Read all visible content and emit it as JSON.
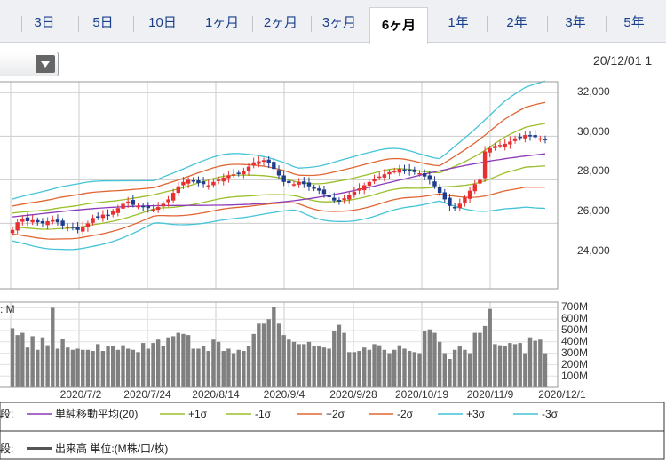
{
  "tabs": [
    {
      "label": "3日"
    },
    {
      "label": "5日"
    },
    {
      "label": "10日"
    },
    {
      "label": "1ヶ月"
    },
    {
      "label": "2ヶ月"
    },
    {
      "label": "3ヶ月"
    },
    {
      "label": "6ヶ月",
      "active": true
    },
    {
      "label": "1年"
    },
    {
      "label": "2年"
    },
    {
      "label": "3年"
    },
    {
      "label": "5年"
    }
  ],
  "header": {
    "datetime": "20/12/01 1"
  },
  "chart": {
    "price_ticks": [
      "32,000",
      "30,000",
      "28,000",
      "26,000",
      "24,000"
    ],
    "volume_unit_label": ": M",
    "volume_ticks": [
      "700M",
      "600M",
      "500M",
      "400M",
      "300M",
      "200M",
      "100M"
    ],
    "date_ticks": [
      "2020/7/2",
      "2020/7/24",
      "2020/8/14",
      "2020/9/4",
      "2020/9/28",
      "2020/10/19",
      "2020/11/9",
      "2020/12/1"
    ]
  },
  "legend": {
    "row1_prefix": "段:",
    "row2_prefix": "段:",
    "items": [
      {
        "label": "単純移動平均(20)",
        "color": "#8b3ab8"
      },
      {
        "label": "+1σ",
        "color": "#9bbf2a"
      },
      {
        "label": "-1σ",
        "color": "#9bbf2a"
      },
      {
        "label": "+2σ",
        "color": "#e06633"
      },
      {
        "label": "-2σ",
        "color": "#e06633"
      },
      {
        "label": "+3σ",
        "color": "#45c4d8"
      },
      {
        "label": "-3σ",
        "color": "#45c4d8"
      }
    ],
    "volume_label": "出来高 単位:(M株/口/枚)"
  },
  "colors": {
    "candle_up": "#e83030",
    "candle_down": "#1d3c8c",
    "volume_bar": "#808080",
    "grid": "#cccccc"
  },
  "chart_data": {
    "type": "candlestick",
    "price_range": [
      23000,
      32500
    ],
    "closes": [
      25700,
      26050,
      26200,
      26100,
      26150,
      26050,
      26000,
      26100,
      26150,
      26050,
      25900,
      25850,
      25800,
      25700,
      25850,
      26000,
      26250,
      26300,
      26400,
      26350,
      26550,
      26700,
      26900,
      27000,
      26850,
      26800,
      26750,
      26700,
      26650,
      26750,
      26900,
      27100,
      27400,
      27700,
      27900,
      28000,
      27950,
      27850,
      27800,
      27750,
      27900,
      28000,
      28100,
      28200,
      28250,
      28300,
      28400,
      28600,
      28800,
      28850,
      28900,
      28750,
      28500,
      28200,
      27900,
      27850,
      27800,
      27900,
      27800,
      27700,
      27600,
      27500,
      27350,
      27200,
      27050,
      27000,
      27150,
      27300,
      27450,
      27600,
      27750,
      27900,
      28050,
      28150,
      28250,
      28350,
      28400,
      28500,
      28450,
      28400,
      28350,
      28300,
      28150,
      28000,
      27700,
      27400,
      27100,
      26800,
      26700,
      26900,
      27200,
      27500,
      27800,
      28000,
      29300,
      29450,
      29550,
      29600,
      29650,
      29750,
      29900,
      29950,
      30050,
      30000,
      29950,
      29900,
      29850
    ],
    "sma20_left": 26300,
    "sma20_right": 29050,
    "volume_range": [
      0,
      750
    ],
    "volumes": [
      520,
      460,
      480,
      350,
      450,
      330,
      440,
      370,
      700,
      340,
      430,
      350,
      330,
      340,
      330,
      330,
      320,
      380,
      320,
      360,
      360,
      330,
      370,
      340,
      330,
      310,
      390,
      340,
      390,
      420,
      360,
      440,
      450,
      480,
      470,
      460,
      340,
      340,
      360,
      320,
      420,
      400,
      320,
      340,
      300,
      330,
      320,
      360,
      470,
      560,
      560,
      600,
      710,
      560,
      460,
      420,
      400,
      380,
      380,
      400,
      360,
      360,
      350,
      340,
      500,
      550,
      480,
      310,
      310,
      320,
      350,
      330,
      380,
      370,
      330,
      300,
      330,
      370,
      340,
      320,
      310,
      300,
      500,
      510,
      480,
      400,
      300,
      250,
      330,
      360,
      330,
      300,
      480,
      480,
      540,
      690,
      380,
      370,
      360,
      390,
      380,
      390,
      300,
      440,
      410,
      420,
      300
    ]
  }
}
